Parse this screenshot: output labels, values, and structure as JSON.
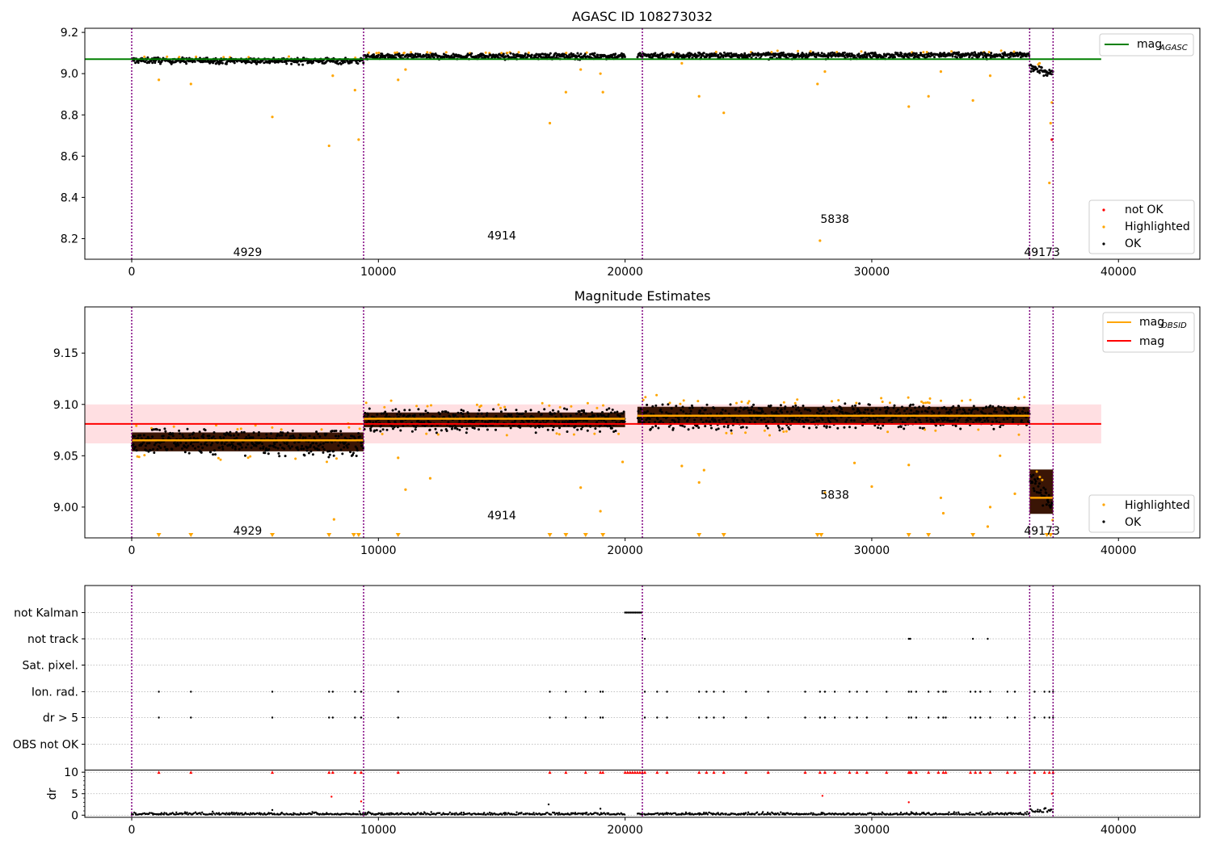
{
  "chart_data": [
    {
      "type": "scatter",
      "title": "AGASC ID 108273032",
      "xlim": [
        -1900,
        43300
      ],
      "ylim": [
        8.1,
        9.22
      ],
      "xticks": [
        0,
        10000,
        20000,
        30000,
        40000
      ],
      "yticks": [
        8.2,
        8.4,
        8.6,
        8.8,
        9.0,
        9.2
      ],
      "xtick_labels": [
        "0",
        "10000",
        "20000",
        "30000",
        "40000"
      ],
      "ytick_labels": [
        "8.2",
        "8.4",
        "8.6",
        "8.8",
        "9.0",
        "9.2"
      ],
      "reference_line": {
        "name": "mag",
        "sub": "AGASC",
        "value": 9.07,
        "x_range": [
          -1900,
          39300
        ],
        "color": "#008000"
      },
      "obsid_boundaries": [
        0,
        9400,
        20700,
        36400,
        37350
      ],
      "obsid_labels": [
        {
          "text": "4929",
          "x": 4700,
          "y": 8.135
        },
        {
          "text": "4914",
          "x": 15000,
          "y": 8.215
        },
        {
          "text": "5838",
          "x": 28500,
          "y": 8.295
        },
        {
          "text": "49173",
          "x": 36900,
          "y": 8.135
        }
      ],
      "segments": [
        {
          "x": [
            0,
            9400
          ],
          "center": [
            9.065,
            9.062
          ],
          "spread": 0.015
        },
        {
          "x": [
            9400,
            20000
          ],
          "center": [
            9.085,
            9.085
          ],
          "spread": 0.015
        },
        {
          "x": [
            20500,
            36400
          ],
          "center": [
            9.088,
            9.09
          ],
          "spread": 0.015
        },
        {
          "x": [
            36400,
            37350
          ],
          "center": [
            9.03,
            9.0
          ],
          "spread": 0.018
        }
      ],
      "outliers_highlighted": [
        [
          1100,
          8.97
        ],
        [
          2400,
          8.95
        ],
        [
          5700,
          8.79
        ],
        [
          8000,
          8.65
        ],
        [
          8150,
          8.99
        ],
        [
          9200,
          8.68
        ],
        [
          9050,
          8.92
        ],
        [
          10800,
          8.97
        ],
        [
          11100,
          9.02
        ],
        [
          16950,
          8.76
        ],
        [
          17600,
          8.91
        ],
        [
          18200,
          9.02
        ],
        [
          19100,
          8.91
        ],
        [
          19000,
          9.0
        ],
        [
          22300,
          9.05
        ],
        [
          23000,
          8.89
        ],
        [
          24000,
          8.81
        ],
        [
          27900,
          8.19
        ],
        [
          27800,
          8.95
        ],
        [
          28100,
          9.01
        ],
        [
          31500,
          8.84
        ],
        [
          32300,
          8.89
        ],
        [
          32800,
          9.01
        ],
        [
          34100,
          8.87
        ],
        [
          34800,
          8.99
        ],
        [
          36800,
          9.05
        ],
        [
          37300,
          8.86
        ],
        [
          37250,
          8.76
        ],
        [
          37200,
          8.47
        ]
      ],
      "outliers_not_ok": [
        [
          37300,
          8.68
        ]
      ],
      "legend": {
        "placement": "lower-right",
        "entries": [
          "not OK",
          "Highlighted",
          "OK"
        ]
      },
      "colors": {
        "ok": "#000000",
        "highlighted": "#ffa500",
        "not_ok": "#ff0000",
        "reference": "#008000",
        "boundary": "#800080"
      }
    },
    {
      "type": "scatter",
      "title": "Magnitude Estimates",
      "xlim": [
        -1900,
        43300
      ],
      "ylim": [
        8.97,
        9.195
      ],
      "xticks": [
        0,
        10000,
        20000,
        30000,
        40000
      ],
      "yticks": [
        9.0,
        9.05,
        9.1,
        9.15
      ],
      "xtick_labels": [
        "0",
        "10000",
        "20000",
        "30000",
        "40000"
      ],
      "ytick_labels": [
        "9.00",
        "9.05",
        "9.10",
        "9.15"
      ],
      "mag_line": {
        "name": "mag",
        "value": 9.081,
        "band": [
          9.062,
          9.1
        ],
        "x_range": [
          -1900,
          39300
        ],
        "color": "#ff0000",
        "band_color": "#ffdfe2"
      },
      "obsid_mag_segments": [
        {
          "x": [
            0,
            9400
          ],
          "value": 9.065
        },
        {
          "x": [
            9400,
            20000
          ],
          "value": 9.086
        },
        {
          "x": [
            20500,
            36400
          ],
          "value": 9.089
        },
        {
          "x": [
            36400,
            37350
          ],
          "value": 9.009
        }
      ],
      "obsid_boundaries": [
        0,
        9400,
        20700,
        36400,
        37350
      ],
      "obsid_labels": [
        {
          "text": "4929",
          "x": 4700,
          "y": 8.977
        },
        {
          "text": "4914",
          "x": 15000,
          "y": 8.992
        },
        {
          "text": "5838",
          "x": 28500,
          "y": 9.012
        },
        {
          "text": "49173",
          "x": 36900,
          "y": 8.977
        }
      ],
      "segments": [
        {
          "x": [
            0,
            9400
          ],
          "center": [
            9.065,
            9.062
          ],
          "spread": 0.014
        },
        {
          "x": [
            9400,
            20000
          ],
          "center": [
            9.085,
            9.085
          ],
          "spread": 0.013
        },
        {
          "x": [
            20500,
            36400
          ],
          "center": [
            9.088,
            9.09
          ],
          "spread": 0.014
        },
        {
          "x": [
            36400,
            37350
          ],
          "center": [
            9.03,
            9.0
          ],
          "spread": 0.012
        }
      ],
      "outliers_highlighted": [
        [
          8200,
          8.988
        ],
        [
          10800,
          9.048
        ],
        [
          11100,
          9.017
        ],
        [
          12100,
          9.028
        ],
        [
          18200,
          9.019
        ],
        [
          19000,
          8.996
        ],
        [
          19900,
          9.044
        ],
        [
          22300,
          9.04
        ],
        [
          23000,
          9.024
        ],
        [
          23200,
          9.036
        ],
        [
          28100,
          9.014
        ],
        [
          29300,
          9.043
        ],
        [
          30000,
          9.02
        ],
        [
          31500,
          9.041
        ],
        [
          32800,
          9.009
        ],
        [
          32900,
          8.994
        ],
        [
          34800,
          9.0
        ],
        [
          34700,
          8.981
        ],
        [
          35200,
          9.05
        ],
        [
          35800,
          9.013
        ]
      ],
      "clipped_markers_x": [
        1100,
        2400,
        5700,
        8000,
        9000,
        9200,
        10800,
        16950,
        17600,
        18400,
        19100,
        23000,
        24000,
        27800,
        27950,
        31500,
        32300,
        34100,
        37100,
        37250
      ],
      "legend": {
        "placement": "lower-right",
        "entries": [
          "Highlighted",
          "OK"
        ]
      },
      "top_legend": {
        "placement": "top-right",
        "entries": [
          {
            "name": "mag",
            "sub": "OBSID",
            "color": "#ffa500"
          },
          {
            "name": "mag",
            "sub": "",
            "color": "#ff0000"
          }
        ]
      },
      "colors": {
        "ok": "#000000",
        "highlighted": "#ffa500",
        "fill": "#3a1505"
      }
    },
    {
      "type": "scatter",
      "title": "",
      "xlim": [
        -1900,
        43300
      ],
      "xticks": [
        0,
        10000,
        20000,
        30000,
        40000
      ],
      "xtick_labels": [
        "0",
        "10000",
        "20000",
        "30000",
        "40000"
      ],
      "flag_rows": [
        "not Kalman",
        "not track",
        "Sat. pixel.",
        "Ion. rad.",
        "dr > 5",
        "OBS not OK"
      ],
      "flag_points": {
        "not Kalman": [
          [
            20000,
            20700
          ]
        ],
        "not track": [
          [
            20800,
            20850
          ],
          [
            31500,
            31600
          ],
          [
            34100,
            34150
          ],
          [
            34700,
            34750
          ]
        ],
        "Sat. pixel.": [],
        "Ion. rad.": [
          1100,
          2400,
          5700,
          8000,
          8150,
          9050,
          9300,
          10800,
          16950,
          17600,
          18400,
          19000,
          19100,
          20800,
          21300,
          21700,
          23000,
          23300,
          23600,
          24000,
          24900,
          25800,
          27300,
          27900,
          28100,
          28500,
          29100,
          29400,
          29800,
          30600,
          31500,
          31600,
          31800,
          32300,
          32700,
          32900,
          33000,
          34000,
          34200,
          34400,
          34800,
          35500,
          35800,
          36600,
          37000,
          37200,
          37350
        ],
        "dr > 5": [
          1100,
          2400,
          5700,
          8000,
          8150,
          9050,
          9300,
          10800,
          16950,
          17600,
          18400,
          19000,
          19100,
          20800,
          21300,
          21700,
          23000,
          23300,
          23600,
          24000,
          24900,
          25800,
          27300,
          27900,
          28100,
          28500,
          29100,
          29400,
          29800,
          30600,
          31500,
          31600,
          31800,
          32300,
          32700,
          32900,
          33000,
          34000,
          34200,
          34400,
          34800,
          35500,
          35800,
          36600,
          37000,
          37200,
          37350
        ],
        "OBS not OK": []
      },
      "dr_panel": {
        "ylabel": "dr",
        "ylim": [
          -0.5,
          10.5
        ],
        "yticks": [
          0,
          5,
          10
        ],
        "ytick_labels": [
          "0",
          "5",
          "10"
        ],
        "clip_level": 10,
        "clipped_red_x": [
          1100,
          2400,
          5700,
          8000,
          8150,
          9050,
          9300,
          10800,
          16950,
          17600,
          18400,
          19000,
          19100,
          20000,
          20100,
          20200,
          20300,
          20400,
          20500,
          20600,
          20700,
          20800,
          21300,
          21700,
          23000,
          23300,
          23600,
          24000,
          24900,
          25800,
          27300,
          27900,
          28100,
          28500,
          29100,
          29400,
          29800,
          30600,
          31500,
          31550,
          31600,
          31800,
          32300,
          32700,
          32900,
          33000,
          34000,
          34200,
          34400,
          34800,
          35500,
          35800,
          36600,
          37000,
          37200,
          37350
        ],
        "extra_points": [
          [
            8100,
            4.3,
            "red"
          ],
          [
            9300,
            3.2,
            "red"
          ],
          [
            28000,
            4.5,
            "red"
          ],
          [
            31500,
            3.0,
            "red"
          ],
          [
            37300,
            5.0,
            "red"
          ],
          [
            16900,
            2.5,
            "black"
          ],
          [
            19000,
            1.5,
            "black"
          ],
          [
            5700,
            1.2,
            "black"
          ]
        ]
      },
      "obsid_boundaries": [
        0,
        9400,
        20700,
        36400,
        37350
      ],
      "colors": {
        "flag": "#000000",
        "clipped": "#ff0000",
        "grid": "#b0b0b0"
      }
    }
  ]
}
